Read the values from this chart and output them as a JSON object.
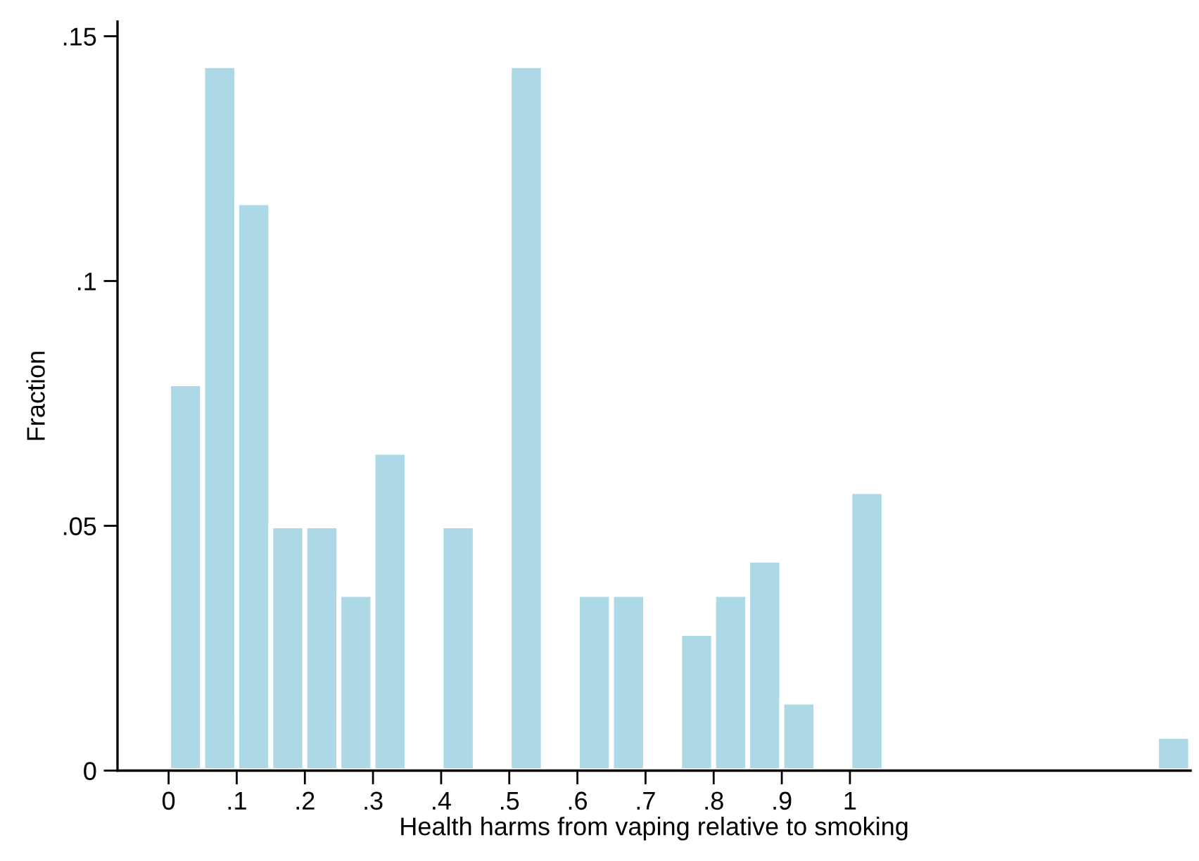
{
  "chart_data": {
    "type": "histogram",
    "xlabel": "Health harms from vaping relative to smoking",
    "ylabel": "Fraction",
    "bins": [
      0,
      0.05,
      0.1,
      0.15,
      0.2,
      0.25,
      0.3,
      0.35,
      0.4,
      0.45,
      0.5,
      0.55,
      0.6,
      0.65,
      0.7,
      0.75,
      0.8,
      0.85,
      0.9,
      0.95,
      1,
      1.05,
      1.1,
      1.15,
      1.2,
      1.25,
      1.3,
      1.35,
      1.4,
      1.45,
      1.5
    ],
    "values": [
      0.079,
      0.144,
      0.116,
      0.05,
      0.05,
      0.036,
      0.065,
      0,
      0.05,
      0,
      0.144,
      0,
      0.036,
      0.036,
      0,
      0.028,
      0.036,
      0.043,
      0.014,
      0,
      0.057,
      0,
      0,
      0,
      0,
      0,
      0,
      0,
      0,
      0.007
    ],
    "color": "#add8e6",
    "xlim": [
      -0.075,
      1.5
    ],
    "xticks": [
      {
        "value": 0,
        "label": "0"
      },
      {
        "value": 0.1,
        "label": ".1"
      },
      {
        "value": 0.2,
        "label": ".2"
      },
      {
        "value": 0.3,
        "label": ".3"
      },
      {
        "value": 0.4,
        "label": ".4"
      },
      {
        "value": 0.5,
        "label": ".5"
      },
      {
        "value": 0.6,
        "label": ".6"
      },
      {
        "value": 0.7,
        "label": ".7"
      },
      {
        "value": 0.8,
        "label": ".8"
      },
      {
        "value": 0.9,
        "label": ".9"
      },
      {
        "value": 1,
        "label": "1"
      }
    ],
    "ylim": [
      0,
      0.153
    ],
    "yticks": [
      {
        "value": 0,
        "label": "0"
      },
      {
        "value": 0.05,
        "label": ".05"
      },
      {
        "value": 0.1,
        "label": ".1"
      },
      {
        "value": 0.15,
        "label": ".15"
      }
    ],
    "grid": false
  }
}
